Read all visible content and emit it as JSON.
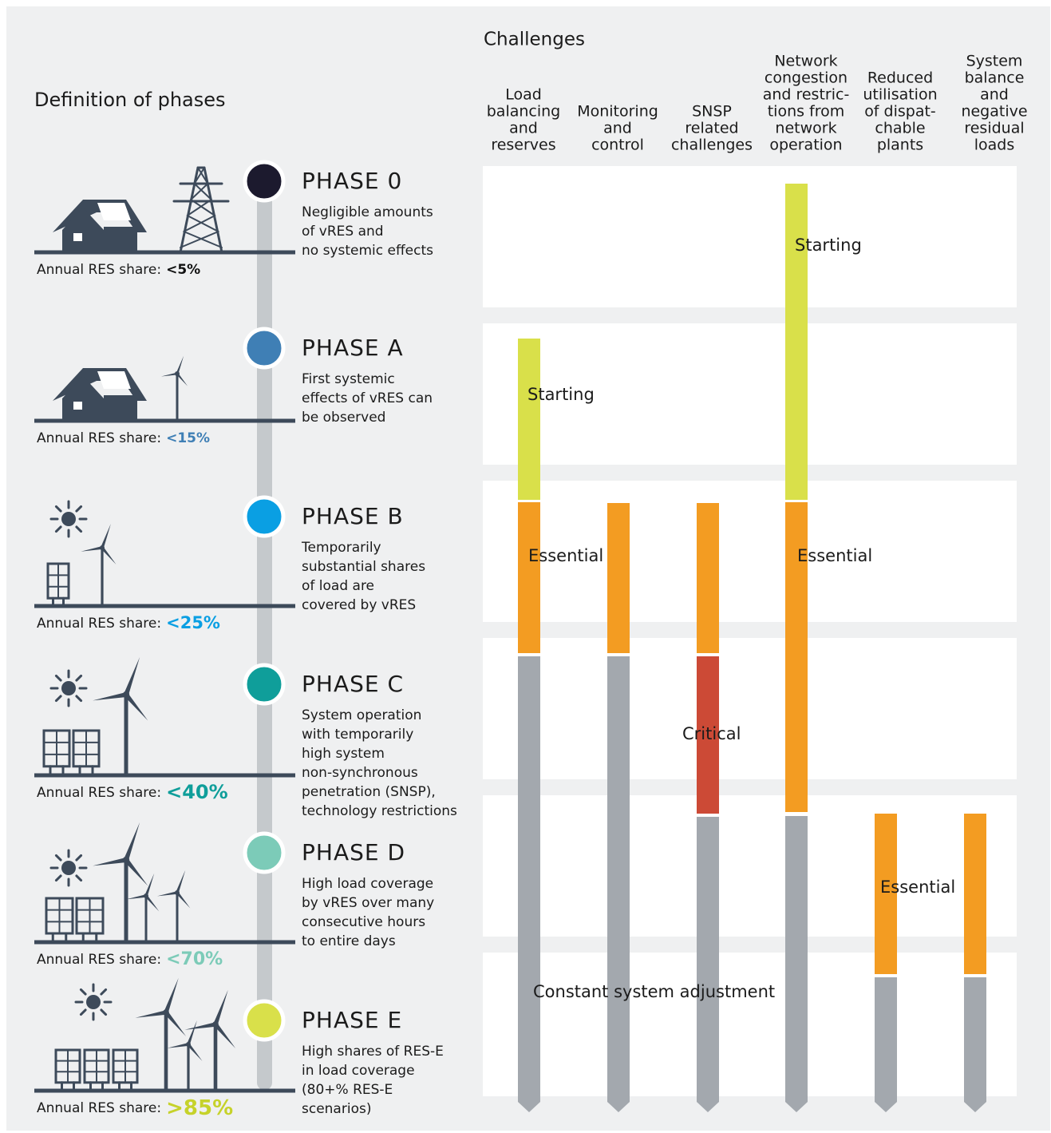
{
  "left_title": "Definition of phases",
  "right_title": "Challenges",
  "columns": [
    {
      "lines": [
        "Load",
        "balancing",
        "and",
        "reserves"
      ]
    },
    {
      "lines": [
        "Monitoring",
        "and",
        "control"
      ]
    },
    {
      "lines": [
        "SNSP",
        "related",
        "challenges"
      ]
    },
    {
      "lines": [
        "Network",
        "congestion",
        "and restric-",
        "tions from",
        "network",
        "operation"
      ]
    },
    {
      "lines": [
        "Reduced",
        "utilisation",
        "of dispat-",
        "chable",
        "plants"
      ]
    },
    {
      "lines": [
        "System",
        "balance",
        "and",
        "negative",
        "residual",
        "loads"
      ]
    }
  ],
  "phases": [
    {
      "name": "PHASE 0",
      "color": "#1c1a2e",
      "description": [
        "Negligible amounts",
        "of vRES and",
        "no systemic effects"
      ],
      "share_label": "Annual RES share:",
      "share": "<5%",
      "share_color": "#111111"
    },
    {
      "name": "PHASE A",
      "color": "#3f7fb5",
      "description": [
        "First systemic",
        "effects of vRES can",
        "be observed"
      ],
      "share_label": "Annual RES share:",
      "share": "<15%",
      "share_color": "#3f7fb5"
    },
    {
      "name": "PHASE B",
      "color": "#0a9fe3",
      "description": [
        "Temporarily",
        "substantial shares",
        "of load are",
        "covered by vRES"
      ],
      "share_label": "Annual RES share:",
      "share": "<25%",
      "share_color": "#0a9fe3"
    },
    {
      "name": "PHASE C",
      "color": "#0f9e9a",
      "description": [
        "System operation",
        "with temporarily",
        "high system",
        "non-synchronous",
        "penetration (SNSP),",
        "technology restrictions"
      ],
      "share_label": "Annual RES share:",
      "share": "<40%",
      "share_color": "#0f9e9a"
    },
    {
      "name": "PHASE D",
      "color": "#7ccbb8",
      "description": [
        "High load coverage",
        "by vRES over many",
        "consecutive hours",
        "to entire days"
      ],
      "share_label": "Annual RES share:",
      "share": "<70%",
      "share_color": "#7ccbb8"
    },
    {
      "name": "PHASE E",
      "color": "#d9e04a",
      "description": [
        "High shares of RES-E",
        "in load coverage",
        "(80+% RES-E",
        "scenarios)"
      ],
      "share_label": "Annual RES share:",
      "share": ">85%",
      "share_color": "#c6d22a"
    }
  ],
  "annotations": [
    "Starting",
    "Starting",
    "Essential",
    "Essential",
    "Critical",
    "Essential",
    "Constant system adjustment"
  ]
}
